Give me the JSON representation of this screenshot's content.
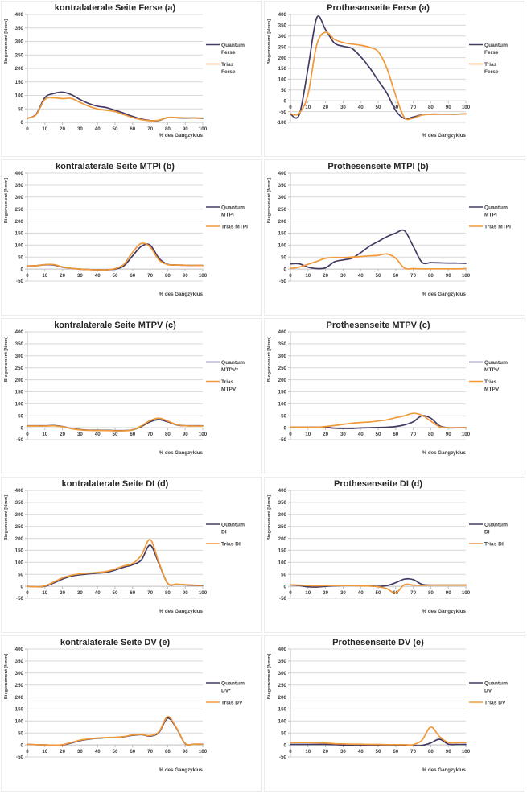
{
  "page": {
    "background": "#ffffff"
  },
  "colors": {
    "quantum": "#453A63",
    "trias": "#F0993B",
    "grid": "#d9d9d9",
    "axis": "#bfbfbf",
    "tick_text": "#404040",
    "title_text": "#262626",
    "panel_border": "#ececec"
  },
  "chart_data": [
    {
      "id": "kontra-ferse-a",
      "type": "line",
      "title": "kontralaterale Seite Ferse (a)",
      "ylabel": "Biegemoment [Nmm]",
      "xlabel": "% des Gangzyklus",
      "ylim": [
        0,
        400
      ],
      "ytick_step": 50,
      "xlim": [
        0,
        100
      ],
      "xtick_step": 10,
      "grid": true,
      "legend_position": "right",
      "x": [
        0,
        5,
        10,
        15,
        20,
        25,
        30,
        35,
        40,
        45,
        50,
        55,
        60,
        65,
        70,
        75,
        80,
        85,
        90,
        95,
        100
      ],
      "series": [
        {
          "name": "Quantum Ferse",
          "legend_lines": [
            "Quantum",
            "Ferse"
          ],
          "color": "quantum",
          "values": [
            15,
            30,
            92,
            107,
            112,
            103,
            85,
            70,
            60,
            55,
            45,
            34,
            22,
            12,
            7,
            7,
            18,
            17,
            16,
            16,
            15
          ]
        },
        {
          "name": "Trias Ferse",
          "legend_lines": [
            "Trias",
            "Ferse"
          ],
          "color": "trias",
          "values": [
            15,
            28,
            85,
            91,
            88,
            89,
            74,
            60,
            50,
            45,
            40,
            29,
            18,
            10,
            6,
            8,
            18,
            18,
            17,
            16,
            16
          ]
        }
      ]
    },
    {
      "id": "prothese-ferse-a",
      "type": "line",
      "title": "Prothesenseite Ferse (a)",
      "ylabel": "Biegemoment [Nmm]",
      "xlabel": "% des Gangzyklus",
      "ylim": [
        -100,
        400
      ],
      "ytick_step": 50,
      "xlim": [
        0,
        100
      ],
      "xtick_step": 10,
      "grid": true,
      "legend_position": "right",
      "x": [
        0,
        5,
        10,
        15,
        20,
        25,
        30,
        35,
        40,
        45,
        50,
        55,
        60,
        65,
        70,
        75,
        80,
        85,
        90,
        95,
        100
      ],
      "series": [
        {
          "name": "Quantum Ferse",
          "legend_lines": [
            "Quantum",
            "Ferse"
          ],
          "color": "quantum",
          "values": [
            -62,
            -65,
            150,
            385,
            330,
            268,
            253,
            243,
            205,
            155,
            95,
            35,
            -45,
            -82,
            -75,
            -65,
            -62,
            -62,
            -62,
            -62,
            -60
          ]
        },
        {
          "name": "Trias Ferse",
          "legend_lines": [
            "Trias",
            "Ferse"
          ],
          "color": "trias",
          "values": [
            -60,
            -58,
            30,
            260,
            318,
            285,
            270,
            263,
            258,
            248,
            228,
            150,
            25,
            -78,
            -80,
            -66,
            -63,
            -62,
            -62,
            -62,
            -60
          ]
        }
      ]
    },
    {
      "id": "kontra-mtpi-b",
      "type": "line",
      "title": "kontralaterale Seite MTPI (b)",
      "ylabel": "Biegemoment [Nmm]",
      "xlabel": "% des Gangzyklus",
      "ylim": [
        -50,
        400
      ],
      "ytick_step": 50,
      "xlim": [
        0,
        100
      ],
      "xtick_step": 10,
      "grid": true,
      "legend_position": "right",
      "x": [
        0,
        5,
        10,
        15,
        20,
        25,
        30,
        35,
        40,
        45,
        50,
        55,
        60,
        65,
        70,
        75,
        80,
        85,
        90,
        95,
        100
      ],
      "series": [
        {
          "name": "Quantum MTPI",
          "legend_lines": [
            "Quantum",
            "MTPI"
          ],
          "color": "quantum",
          "values": [
            13,
            14,
            18,
            17,
            8,
            3,
            0,
            -2,
            -3,
            -3,
            0,
            13,
            55,
            95,
            100,
            45,
            20,
            17,
            16,
            15,
            15
          ]
        },
        {
          "name": "Trias MTPI",
          "legend_lines": [
            "Trias MTPI"
          ],
          "color": "trias",
          "values": [
            13,
            14,
            19,
            19,
            9,
            3,
            0,
            -2,
            -3,
            -3,
            2,
            20,
            70,
            107,
            92,
            38,
            19,
            17,
            16,
            15,
            15
          ]
        }
      ]
    },
    {
      "id": "prothese-mtpi-b",
      "type": "line",
      "title": "Prothesenseite MTPI (b)",
      "ylabel": "Biegemoment [Nmm]",
      "xlabel": "% des Gangzyklus",
      "ylim": [
        -50,
        400
      ],
      "ytick_step": 50,
      "xlim": [
        0,
        100
      ],
      "xtick_step": 10,
      "grid": true,
      "legend_position": "right",
      "x": [
        0,
        5,
        10,
        15,
        20,
        25,
        30,
        35,
        40,
        45,
        50,
        55,
        60,
        65,
        70,
        75,
        80,
        85,
        90,
        95,
        100
      ],
      "series": [
        {
          "name": "Quantum MTPI",
          "legend_lines": [
            "Quantum",
            "MTPI"
          ],
          "color": "quantum",
          "values": [
            22,
            22,
            8,
            2,
            5,
            30,
            38,
            45,
            68,
            95,
            115,
            135,
            150,
            160,
            95,
            28,
            27,
            26,
            25,
            25,
            24
          ]
        },
        {
          "name": "Trias MTPI",
          "legend_lines": [
            "Trias MTPI"
          ],
          "color": "trias",
          "values": [
            3,
            8,
            20,
            32,
            45,
            48,
            48,
            50,
            52,
            55,
            57,
            63,
            45,
            4,
            2,
            1,
            1,
            1,
            1,
            1,
            2
          ]
        }
      ]
    },
    {
      "id": "kontra-mtpv-c",
      "type": "line",
      "title": "kontralaterale Seite MTPV (c)",
      "ylabel": "Biegemoment [Nmm]",
      "xlabel": "% des Gangzyklus",
      "ylim": [
        -50,
        400
      ],
      "ytick_step": 50,
      "xlim": [
        0,
        100
      ],
      "xtick_step": 10,
      "grid": true,
      "legend_position": "right",
      "x": [
        0,
        5,
        10,
        15,
        20,
        25,
        30,
        35,
        40,
        45,
        50,
        55,
        60,
        65,
        70,
        75,
        80,
        85,
        90,
        95,
        100
      ],
      "series": [
        {
          "name": "Quantum MTPV*",
          "legend_lines": [
            "Quantum",
            "MTPV*"
          ],
          "color": "quantum",
          "values": [
            8,
            8,
            8,
            9,
            5,
            -3,
            -8,
            -10,
            -11,
            -11,
            -12,
            -12,
            -9,
            5,
            25,
            34,
            25,
            12,
            8,
            8,
            8
          ]
        },
        {
          "name": "Trias MTPV",
          "legend_lines": [
            "Trias",
            "MTPV"
          ],
          "color": "trias",
          "values": [
            7,
            7,
            7,
            8,
            4,
            -4,
            -9,
            -11,
            -12,
            -12,
            -13,
            -13,
            -9,
            8,
            30,
            40,
            28,
            13,
            8,
            7,
            7
          ]
        }
      ]
    },
    {
      "id": "prothese-mtpv-c",
      "type": "line",
      "title": "Prothesenseite MTPV (c)",
      "ylabel": "Biegemoment [Nmm]",
      "xlabel": "% des Gangzyklus",
      "ylim": [
        -50,
        400
      ],
      "ytick_step": 50,
      "xlim": [
        0,
        100
      ],
      "xtick_step": 10,
      "grid": true,
      "legend_position": "right",
      "x": [
        0,
        5,
        10,
        15,
        20,
        25,
        30,
        35,
        40,
        45,
        50,
        55,
        60,
        65,
        70,
        75,
        80,
        85,
        90,
        95,
        100
      ],
      "series": [
        {
          "name": "Quantum MTPV",
          "legend_lines": [
            "Quantum",
            "MTPV"
          ],
          "color": "quantum",
          "values": [
            2,
            2,
            2,
            2,
            2,
            -2,
            -3,
            -3,
            -1,
            0,
            1,
            2,
            5,
            12,
            25,
            50,
            40,
            8,
            0,
            0,
            1
          ]
        },
        {
          "name": "Trias MTPV",
          "legend_lines": [
            "Trias",
            "MTPV"
          ],
          "color": "trias",
          "values": [
            2,
            2,
            2,
            2,
            5,
            9,
            14,
            19,
            22,
            24,
            28,
            33,
            42,
            50,
            60,
            52,
            28,
            4,
            0,
            0,
            1
          ]
        }
      ]
    },
    {
      "id": "kontra-di-d",
      "type": "line",
      "title": "kontralaterale Seite DI (d)",
      "ylabel": "Biegemoment [Nmm]",
      "xlabel": "% des Gangzyklus",
      "ylim": [
        -50,
        400
      ],
      "ytick_step": 50,
      "xlim": [
        0,
        100
      ],
      "xtick_step": 10,
      "grid": true,
      "legend_position": "right",
      "x": [
        0,
        5,
        10,
        15,
        20,
        25,
        30,
        35,
        40,
        45,
        50,
        55,
        60,
        65,
        70,
        75,
        80,
        85,
        90,
        95,
        100
      ],
      "series": [
        {
          "name": "Quantum DI",
          "legend_lines": [
            "Quantum",
            "DI"
          ],
          "color": "quantum",
          "values": [
            0,
            -2,
            0,
            14,
            30,
            42,
            48,
            52,
            55,
            58,
            68,
            80,
            90,
            110,
            172,
            95,
            12,
            8,
            6,
            4,
            3
          ]
        },
        {
          "name": "Trias DI",
          "legend_lines": [
            "Trias DI"
          ],
          "color": "trias",
          "values": [
            0,
            -2,
            2,
            18,
            35,
            46,
            52,
            55,
            58,
            62,
            72,
            85,
            95,
            130,
            195,
            100,
            13,
            9,
            7,
            5,
            4
          ]
        }
      ]
    },
    {
      "id": "prothese-di-d",
      "type": "line",
      "title": "Prothesenseite DI (d)",
      "ylabel": "Biegemoment [Nmm]",
      "xlabel": "% des Gangzyklus",
      "ylim": [
        -50,
        400
      ],
      "ytick_step": 50,
      "xlim": [
        0,
        100
      ],
      "xtick_step": 10,
      "grid": true,
      "legend_position": "right",
      "x": [
        0,
        5,
        10,
        15,
        20,
        25,
        30,
        35,
        40,
        45,
        50,
        55,
        60,
        65,
        70,
        75,
        80,
        85,
        90,
        95,
        100
      ],
      "series": [
        {
          "name": "Quantum DI",
          "legend_lines": [
            "Quantum",
            "DI"
          ],
          "color": "quantum",
          "values": [
            6,
            3,
            -2,
            -3,
            0,
            2,
            3,
            3,
            3,
            2,
            0,
            3,
            15,
            30,
            28,
            8,
            5,
            5,
            5,
            5,
            5
          ]
        },
        {
          "name": "Trias DI",
          "legend_lines": [
            "Trias DI"
          ],
          "color": "trias",
          "values": [
            6,
            5,
            3,
            2,
            3,
            3,
            3,
            3,
            2,
            1,
            -2,
            -10,
            -28,
            7,
            5,
            4,
            5,
            5,
            5,
            5,
            5
          ]
        }
      ]
    },
    {
      "id": "kontra-dv-e",
      "type": "line",
      "title": "kontralaterale Seite DV (e)",
      "ylabel": "Biegemoment [Nmm]",
      "xlabel": "% des Gangzyklus",
      "ylim": [
        -50,
        400
      ],
      "ytick_step": 50,
      "xlim": [
        0,
        100
      ],
      "xtick_step": 10,
      "grid": true,
      "legend_position": "right",
      "x": [
        0,
        5,
        10,
        15,
        20,
        25,
        30,
        35,
        40,
        45,
        50,
        55,
        60,
        65,
        70,
        75,
        80,
        85,
        90,
        95,
        100
      ],
      "series": [
        {
          "name": "Quantum DV*",
          "legend_lines": [
            "Quantum",
            "DV*"
          ],
          "color": "quantum",
          "values": [
            2,
            1,
            0,
            -1,
            0,
            8,
            18,
            24,
            28,
            30,
            31,
            34,
            40,
            43,
            37,
            52,
            112,
            70,
            5,
            3,
            3
          ]
        },
        {
          "name": "Trias DV",
          "legend_lines": [
            "Trias DV"
          ],
          "color": "trias",
          "values": [
            2,
            1,
            0,
            -1,
            1,
            10,
            20,
            25,
            29,
            31,
            32,
            35,
            42,
            44,
            39,
            55,
            118,
            72,
            6,
            3,
            3
          ]
        }
      ]
    },
    {
      "id": "prothese-dv-e",
      "type": "line",
      "title": "Prothesenseite DV (e)",
      "ylabel": "Biegemoment [Nmm]",
      "xlabel": "% des Gangzyklus",
      "ylim": [
        -50,
        400
      ],
      "ytick_step": 50,
      "xlim": [
        0,
        100
      ],
      "xtick_step": 10,
      "grid": true,
      "legend_position": "right",
      "x": [
        0,
        5,
        10,
        15,
        20,
        25,
        30,
        35,
        40,
        45,
        50,
        55,
        60,
        65,
        70,
        75,
        80,
        85,
        90,
        95,
        100
      ],
      "series": [
        {
          "name": "Quantum DV",
          "legend_lines": [
            "Quantum",
            "DV"
          ],
          "color": "quantum",
          "values": [
            2,
            2,
            2,
            2,
            2,
            1,
            0,
            0,
            0,
            0,
            0,
            0,
            -1,
            -2,
            -3,
            -2,
            8,
            24,
            3,
            2,
            2
          ]
        },
        {
          "name": "Trias DV",
          "legend_lines": [
            "Trias DV"
          ],
          "color": "trias",
          "values": [
            10,
            10,
            10,
            9,
            8,
            5,
            4,
            3,
            3,
            2,
            2,
            1,
            1,
            1,
            1,
            20,
            75,
            35,
            10,
            10,
            10
          ]
        }
      ]
    }
  ]
}
